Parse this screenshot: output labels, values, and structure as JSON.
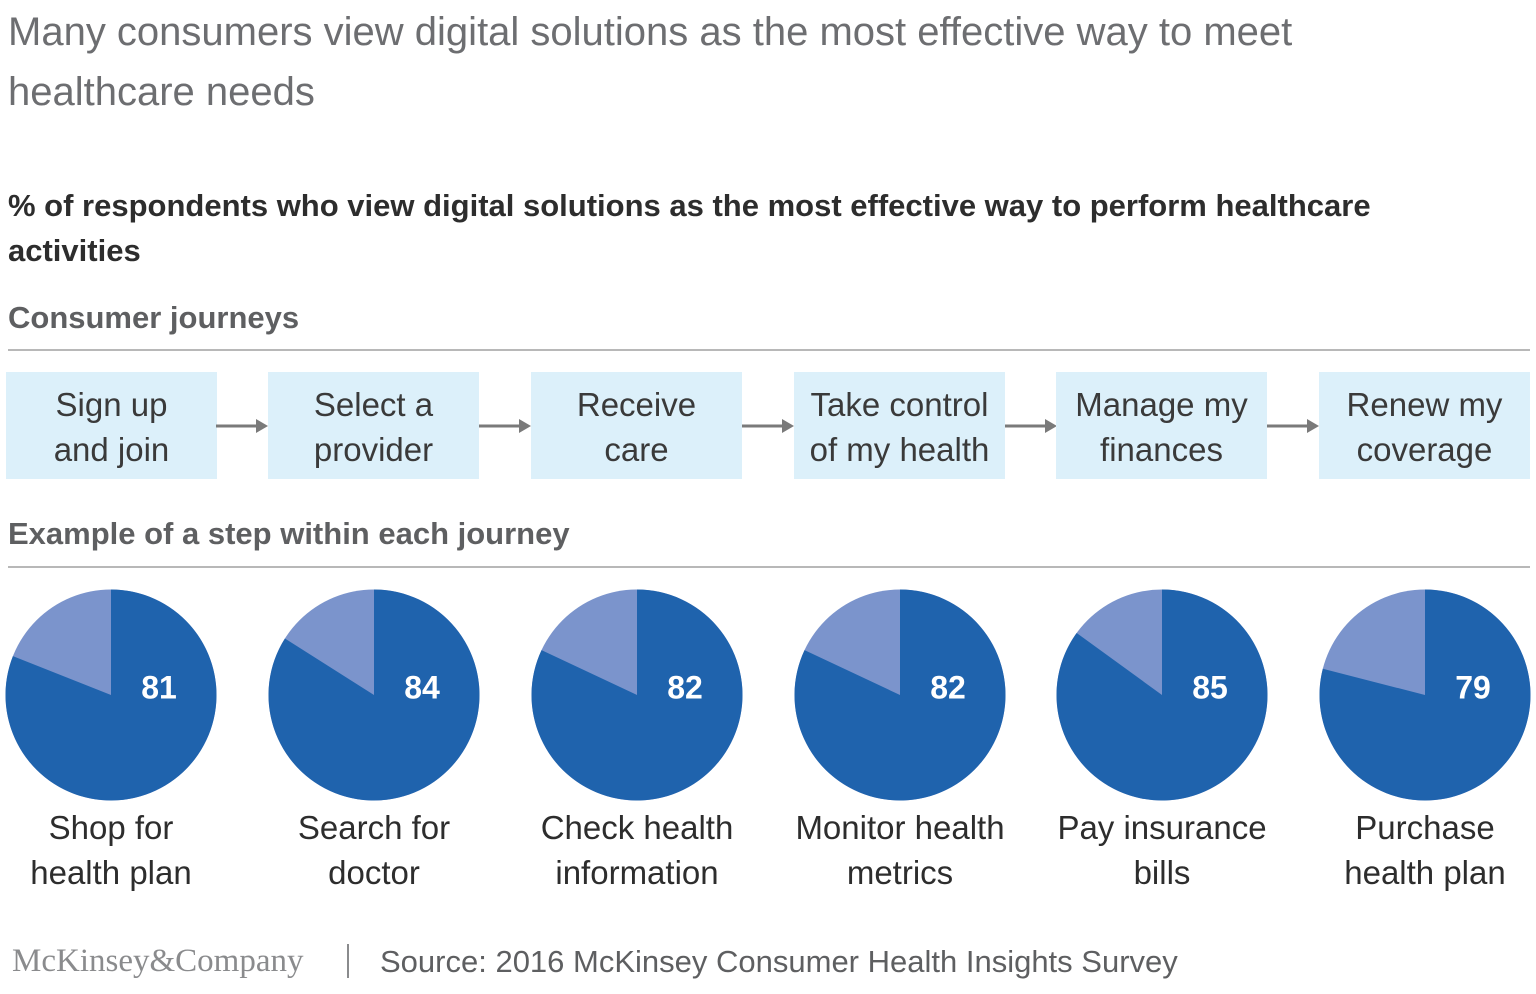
{
  "title": "Many consumers view digital solutions as the most effective way to meet healthcare needs",
  "subtitle": "% of respondents who view digital solutions as the most effective way to perform healthcare activities",
  "journeys_label": "Consumer journeys",
  "journeys": [
    "Sign up\nand join",
    "Select a\nprovider",
    "Receive\ncare",
    "Take control\nof my health",
    "Manage my\nfinances",
    "Renew my\ncoverage"
  ],
  "steps_label": "Example of a step within each journey",
  "colors": {
    "primary": "#1f63ad",
    "secondary": "#7b94cc",
    "journey_box": "#dcf0fa",
    "arrow": "#7a7a7a"
  },
  "chart_data": {
    "type": "pie",
    "unit": "%",
    "categories": [
      "Shop for\nhealth plan",
      "Search for\ndoctor",
      "Check health\ninformation",
      "Monitor health\nmetrics",
      "Pay insurance\nbills",
      "Purchase\nhealth plan"
    ],
    "values": [
      81,
      84,
      82,
      82,
      85,
      79
    ],
    "total": 100
  },
  "footer": {
    "logo": "McKinsey&Company",
    "source": "Source: 2016 McKinsey Consumer Health Insights Survey"
  }
}
